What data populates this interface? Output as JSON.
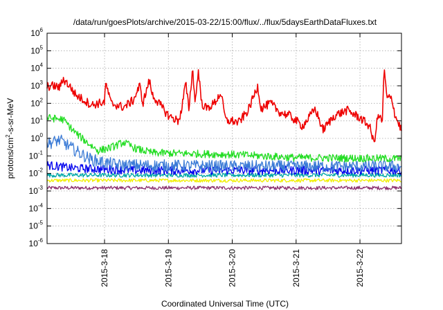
{
  "chart_data": {
    "type": "line",
    "title": "/data/run/goesPlots/archive/2015-03-22/15:00/flux/../flux/5daysEarthDataFluxes.txt",
    "xlabel": "Coordinated Universal Time (UTC)",
    "ylabel_parts": {
      "base": "protons/cm",
      "sup": "2",
      "rest": "-s-sr-MeV"
    },
    "yscale": "log",
    "ylim_exponents": [
      -6,
      6
    ],
    "y_tick_exponents": [
      -6,
      -5,
      -4,
      -3,
      -2,
      -1,
      0,
      1,
      2,
      3,
      4,
      5,
      6
    ],
    "y_tick_base": "10",
    "xlim_days": [
      17.1,
      22.65
    ],
    "x_ticks": [
      {
        "day": 18,
        "label": "2015-3-18"
      },
      {
        "day": 19,
        "label": "2015-3-19"
      },
      {
        "day": 20,
        "label": "2015-3-20"
      },
      {
        "day": 21,
        "label": "2015-3-21"
      },
      {
        "day": 22,
        "label": "2015-3-22"
      }
    ],
    "grid": true,
    "legend": "none",
    "series": [
      {
        "color": "#8b2f6e",
        "noise": 0.1,
        "points": [
          [
            17.1,
            0.0015
          ],
          [
            22.65,
            0.0015
          ]
        ]
      },
      {
        "color": "#f0f000",
        "noise": 0.1,
        "points": [
          [
            17.1,
            0.004
          ],
          [
            22.65,
            0.004
          ]
        ]
      },
      {
        "color": "#00a8a8",
        "noise": 0.12,
        "points": [
          [
            17.1,
            0.008
          ],
          [
            22.65,
            0.008
          ]
        ]
      },
      {
        "color": "#0000ee",
        "noise": 0.25,
        "points": [
          [
            17.1,
            0.03
          ],
          [
            17.5,
            0.02
          ],
          [
            18.5,
            0.015
          ],
          [
            20.0,
            0.015
          ],
          [
            22.65,
            0.015
          ]
        ]
      },
      {
        "color": "#3b7bd6",
        "noise": 0.35,
        "points": [
          [
            17.1,
            0.5
          ],
          [
            17.3,
            0.8
          ],
          [
            17.6,
            0.15
          ],
          [
            17.8,
            0.06
          ],
          [
            18.2,
            0.03
          ],
          [
            20.0,
            0.025
          ],
          [
            22.65,
            0.025
          ]
        ]
      },
      {
        "color": "#22dd22",
        "noise": 0.22,
        "points": [
          [
            17.1,
            15
          ],
          [
            17.35,
            12
          ],
          [
            17.55,
            2
          ],
          [
            17.75,
            0.5
          ],
          [
            17.9,
            0.2
          ],
          [
            18.1,
            0.3
          ],
          [
            18.3,
            0.6
          ],
          [
            18.5,
            0.25
          ],
          [
            18.75,
            0.15
          ],
          [
            20.0,
            0.12
          ],
          [
            21.0,
            0.08
          ],
          [
            22.65,
            0.07
          ]
        ]
      },
      {
        "color": "#ee0000",
        "noise": 0.25,
        "points": [
          [
            17.1,
            900
          ],
          [
            17.2,
            1000
          ],
          [
            17.3,
            800
          ],
          [
            17.35,
            2500
          ],
          [
            17.45,
            1000
          ],
          [
            17.55,
            300
          ],
          [
            17.8,
            80
          ],
          [
            18.0,
            120
          ],
          [
            18.02,
            1500
          ],
          [
            18.1,
            100
          ],
          [
            18.3,
            60
          ],
          [
            18.45,
            150
          ],
          [
            18.55,
            1000
          ],
          [
            18.6,
            100
          ],
          [
            18.7,
            2000
          ],
          [
            18.75,
            300
          ],
          [
            18.85,
            100
          ],
          [
            19.0,
            20
          ],
          [
            19.15,
            10
          ],
          [
            19.2,
            30
          ],
          [
            19.27,
            1500
          ],
          [
            19.32,
            50
          ],
          [
            19.38,
            9000
          ],
          [
            19.42,
            100
          ],
          [
            19.47,
            8000
          ],
          [
            19.52,
            100
          ],
          [
            19.6,
            50
          ],
          [
            19.72,
            100
          ],
          [
            19.82,
            400
          ],
          [
            19.9,
            10
          ],
          [
            20.0,
            10
          ],
          [
            20.1,
            8
          ],
          [
            20.25,
            40
          ],
          [
            20.4,
            1000
          ],
          [
            20.45,
            50
          ],
          [
            20.6,
            100
          ],
          [
            20.75,
            30
          ],
          [
            20.9,
            20
          ],
          [
            21.1,
            5
          ],
          [
            21.2,
            15
          ],
          [
            21.3,
            50
          ],
          [
            21.42,
            3
          ],
          [
            21.6,
            20
          ],
          [
            21.8,
            40
          ],
          [
            22.0,
            15
          ],
          [
            22.15,
            5
          ],
          [
            22.22,
            0.5
          ],
          [
            22.28,
            20
          ],
          [
            22.35,
            10
          ],
          [
            22.38,
            10000
          ],
          [
            22.42,
            200
          ],
          [
            22.5,
            200
          ],
          [
            22.55,
            20
          ],
          [
            22.65,
            3
          ]
        ]
      }
    ]
  }
}
